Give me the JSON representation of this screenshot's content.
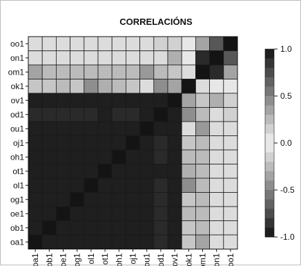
{
  "chart_data": {
    "type": "heatmap",
    "title": "CORRELACIÓNS",
    "xlabel": "",
    "ylabel": "",
    "x_categories": [
      "oa1",
      "ob1",
      "oe1",
      "og1",
      "ol1",
      "ot1",
      "oh1",
      "oj1",
      "ou1",
      "od1",
      "ov1",
      "ok1",
      "om1",
      "on1",
      "oo1"
    ],
    "y_categories_top_to_bottom": [
      "oo1",
      "on1",
      "om1",
      "ok1",
      "ov1",
      "od1",
      "ou1",
      "oj1",
      "oh1",
      "ot1",
      "ol1",
      "og1",
      "oe1",
      "ob1",
      "oa1"
    ],
    "colorbar": {
      "range": [
        -1.0,
        1.0
      ],
      "ticks": [
        1.0,
        0.5,
        0.0,
        -0.5,
        -1.0
      ],
      "tick_labels": [
        "1.0",
        "0.5",
        "0.0",
        "-0.5",
        "-1.0"
      ],
      "low_color": "#141414",
      "mid_color": "#f2f2f2",
      "high_color": "#141414"
    },
    "values": [
      [
        -0.1,
        -0.1,
        -0.1,
        -0.1,
        -0.1,
        -0.1,
        -0.1,
        -0.1,
        -0.1,
        -0.15,
        -0.15,
        -0.05,
        -0.35,
        -0.7,
        -1.0
      ],
      [
        -0.1,
        -0.1,
        -0.1,
        -0.1,
        -0.1,
        -0.1,
        -0.1,
        -0.1,
        -0.1,
        -0.1,
        -0.3,
        -0.05,
        -0.9,
        -1.0,
        -0.7
      ],
      [
        0.35,
        0.25,
        0.25,
        0.25,
        0.25,
        0.25,
        0.25,
        0.25,
        0.4,
        0.25,
        0.2,
        0.1,
        -1.0,
        -0.9,
        -0.35
      ],
      [
        0.2,
        0.2,
        0.25,
        0.2,
        0.45,
        0.3,
        0.25,
        0.2,
        0.1,
        0.45,
        0.35,
        1.0,
        0.1,
        -0.05,
        -0.05
      ],
      [
        0.95,
        0.95,
        0.95,
        0.95,
        0.95,
        0.95,
        0.95,
        0.95,
        0.95,
        0.95,
        1.0,
        0.35,
        0.2,
        0.3,
        -0.15
      ],
      [
        0.9,
        0.9,
        0.9,
        0.9,
        0.9,
        0.95,
        0.9,
        0.9,
        0.95,
        1.0,
        0.95,
        0.45,
        0.25,
        0.1,
        -0.15
      ],
      [
        0.95,
        0.95,
        0.95,
        0.95,
        0.95,
        0.95,
        0.95,
        0.95,
        1.0,
        0.95,
        0.95,
        0.1,
        0.4,
        0.1,
        -0.1
      ],
      [
        0.95,
        0.95,
        0.95,
        0.95,
        0.95,
        0.95,
        0.95,
        1.0,
        0.95,
        0.9,
        0.95,
        0.2,
        0.25,
        0.1,
        -0.1
      ],
      [
        0.95,
        0.95,
        0.95,
        0.95,
        0.95,
        0.95,
        1.0,
        0.95,
        0.95,
        0.9,
        0.95,
        0.25,
        0.25,
        0.1,
        -0.1
      ],
      [
        0.95,
        0.95,
        0.95,
        0.95,
        0.95,
        1.0,
        0.95,
        0.95,
        0.95,
        0.95,
        0.95,
        0.3,
        0.25,
        0.1,
        -0.1
      ],
      [
        0.95,
        0.95,
        0.95,
        0.95,
        1.0,
        0.95,
        0.95,
        0.95,
        0.95,
        0.9,
        0.95,
        0.45,
        0.25,
        0.1,
        -0.1
      ],
      [
        0.95,
        0.95,
        0.95,
        1.0,
        0.95,
        0.95,
        0.95,
        0.95,
        0.95,
        0.9,
        0.95,
        0.2,
        0.25,
        0.1,
        -0.1
      ],
      [
        0.95,
        0.95,
        1.0,
        0.95,
        0.95,
        0.95,
        0.95,
        0.95,
        0.95,
        0.9,
        0.95,
        0.25,
        0.25,
        0.1,
        -0.1
      ],
      [
        0.95,
        1.0,
        0.95,
        0.95,
        0.95,
        0.95,
        0.95,
        0.95,
        0.95,
        0.9,
        0.95,
        0.2,
        0.25,
        0.1,
        -0.1
      ],
      [
        1.0,
        0.95,
        0.95,
        0.95,
        0.95,
        0.95,
        0.95,
        0.95,
        0.95,
        0.9,
        0.95,
        0.2,
        0.35,
        0.1,
        -0.1
      ]
    ]
  }
}
